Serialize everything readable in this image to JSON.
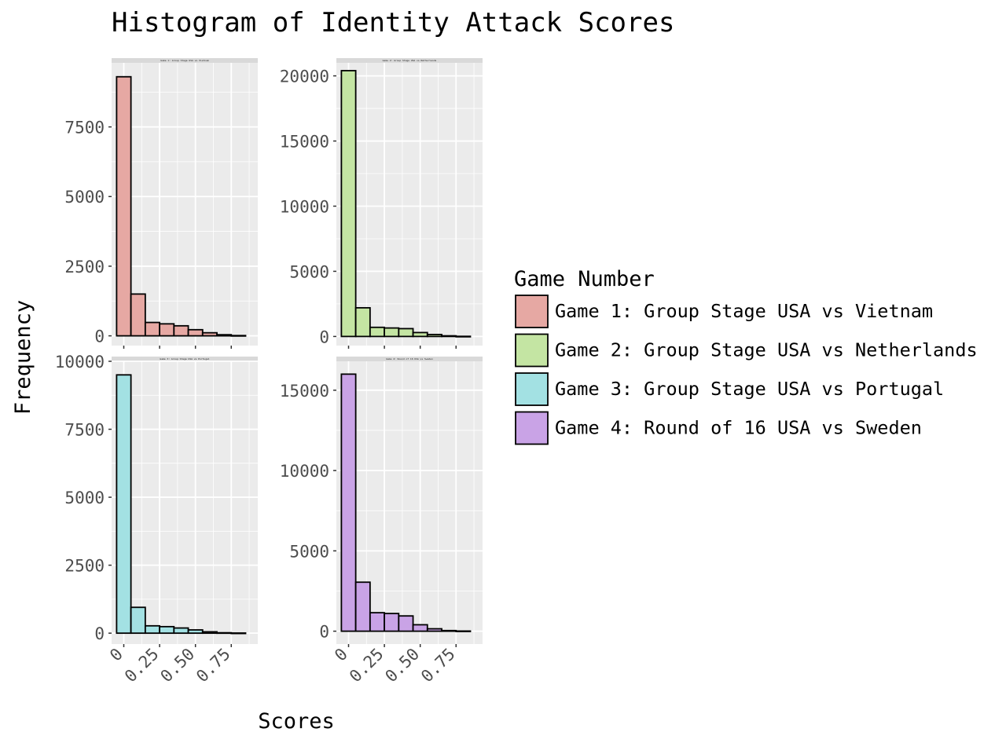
{
  "chart_data": {
    "type": "bar",
    "title": "Histogram of Identity Attack Scores",
    "xlabel": "Scores",
    "ylabel": "Frequency",
    "bin_width": 0.1,
    "bin_centers": [
      0,
      0.1,
      0.2,
      0.3,
      0.4,
      0.5,
      0.6,
      0.7,
      0.8
    ],
    "x_ticks": [
      0,
      0.25,
      0.5,
      0.75
    ],
    "x_tick_labels": [
      "0",
      "0.25",
      "0.50",
      "0.75"
    ],
    "legend": {
      "title": "Game Number",
      "position": "right"
    },
    "grid": true,
    "panels": [
      {
        "name": "Game 1: Group Stage USA vs Vietnam",
        "strip_label": "Game 1: Group Stage USA vs Vietnam",
        "color": "#E6A8A3",
        "values": [
          9300,
          1500,
          480,
          430,
          360,
          220,
          110,
          40,
          10
        ],
        "y_ticks": [
          0,
          2500,
          5000,
          7500
        ],
        "ylim": [
          -350,
          9800
        ]
      },
      {
        "name": "Game 2: Group Stage USA vs Netherlands",
        "strip_label": "Game 2: Group Stage USA vs Netherlands",
        "color": "#C4E5A3",
        "values": [
          20400,
          2200,
          700,
          650,
          600,
          300,
          150,
          50,
          10
        ],
        "y_ticks": [
          0,
          5000,
          10000,
          15000,
          20000
        ],
        "ylim": [
          -700,
          21000
        ]
      },
      {
        "name": "Game 3: Group Stage USA vs Portugal",
        "strip_label": "Game 3: Group Stage USA vs Portugal",
        "color": "#A3E1E3",
        "values": [
          9500,
          950,
          270,
          240,
          190,
          120,
          50,
          15,
          5
        ],
        "y_ticks": [
          0,
          2500,
          5000,
          7500,
          10000
        ],
        "ylim": [
          -400,
          10000
        ]
      },
      {
        "name": "Game 4: Round of 16 USA vs Sweden",
        "strip_label": "Game 4: Round of 16 USA vs Sweden",
        "color": "#C9A3E6",
        "values": [
          16000,
          3050,
          1150,
          1100,
          950,
          400,
          150,
          40,
          10
        ],
        "y_ticks": [
          0,
          5000,
          10000,
          15000
        ],
        "ylim": [
          -800,
          16800
        ]
      }
    ]
  }
}
